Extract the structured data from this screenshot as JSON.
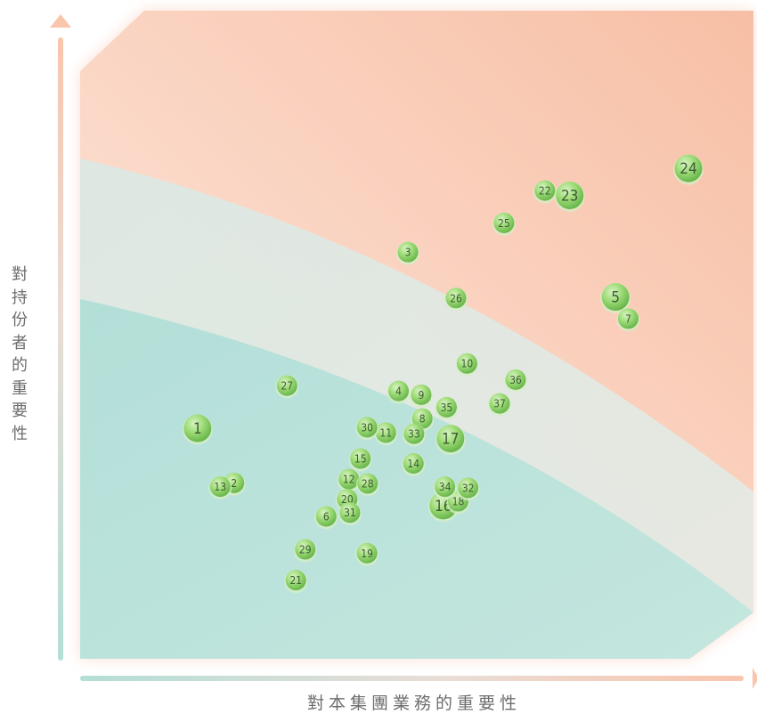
{
  "chart_data": {
    "type": "scatter",
    "xlabel": "對本集團業務的重要性",
    "ylabel": "對持份者的重要性",
    "grid": false,
    "legend": "none",
    "colors": {
      "zone_high": "#f9c3aa",
      "zone_mid": "#e3e8e2",
      "zone_low": "#b6e1d9",
      "bubble": "#8fd46a",
      "bubble_dark": "#5cae3f",
      "label": "#3e5a36"
    },
    "points": [
      {
        "id": "1",
        "x": 11.1,
        "y": 39.2,
        "size": "large"
      },
      {
        "id": "2",
        "x": 17.7,
        "y": 29.1,
        "size": "small"
      },
      {
        "id": "3",
        "x": 49.2,
        "y": 71.8,
        "size": "small"
      },
      {
        "id": "4",
        "x": 47.5,
        "y": 46.1,
        "size": "small"
      },
      {
        "id": "5",
        "x": 86.8,
        "y": 63.5,
        "size": "large"
      },
      {
        "id": "6",
        "x": 34.4,
        "y": 22.9,
        "size": "small"
      },
      {
        "id": "7",
        "x": 89.1,
        "y": 59.5,
        "size": "small"
      },
      {
        "id": "8",
        "x": 51.8,
        "y": 41.0,
        "size": "small"
      },
      {
        "id": "9",
        "x": 51.6,
        "y": 45.4,
        "size": "small"
      },
      {
        "id": "10",
        "x": 59.9,
        "y": 51.2,
        "size": "small"
      },
      {
        "id": "11",
        "x": 45.2,
        "y": 38.4,
        "size": "small"
      },
      {
        "id": "12",
        "x": 38.5,
        "y": 29.8,
        "size": "small"
      },
      {
        "id": "13",
        "x": 15.2,
        "y": 28.4,
        "size": "small"
      },
      {
        "id": "14",
        "x": 50.2,
        "y": 32.7,
        "size": "small"
      },
      {
        "id": "15",
        "x": 40.6,
        "y": 33.6,
        "size": "small"
      },
      {
        "id": "16",
        "x": 55.6,
        "y": 24.9,
        "size": "large"
      },
      {
        "id": "17",
        "x": 56.9,
        "y": 37.3,
        "size": "large"
      },
      {
        "id": "18",
        "x": 58.3,
        "y": 25.7,
        "size": "small"
      },
      {
        "id": "19",
        "x": 41.8,
        "y": 16.1,
        "size": "small"
      },
      {
        "id": "20",
        "x": 38.2,
        "y": 26.1,
        "size": "small"
      },
      {
        "id": "21",
        "x": 28.9,
        "y": 11.1,
        "size": "small"
      },
      {
        "id": "22",
        "x": 74.0,
        "y": 83.2,
        "size": "small"
      },
      {
        "id": "23",
        "x": 78.5,
        "y": 82.3,
        "size": "large"
      },
      {
        "id": "24",
        "x": 100.0,
        "y": 87.3,
        "size": "large"
      },
      {
        "id": "25",
        "x": 66.6,
        "y": 77.2,
        "size": "small"
      },
      {
        "id": "26",
        "x": 57.9,
        "y": 63.3,
        "size": "small"
      },
      {
        "id": "27",
        "x": 27.3,
        "y": 47.1,
        "size": "small"
      },
      {
        "id": "28",
        "x": 41.9,
        "y": 29.0,
        "size": "small"
      },
      {
        "id": "29",
        "x": 30.6,
        "y": 16.8,
        "size": "small"
      },
      {
        "id": "30",
        "x": 41.8,
        "y": 39.4,
        "size": "small"
      },
      {
        "id": "31",
        "x": 38.7,
        "y": 23.6,
        "size": "small"
      },
      {
        "id": "32",
        "x": 60.1,
        "y": 28.2,
        "size": "small"
      },
      {
        "id": "33",
        "x": 50.3,
        "y": 38.2,
        "size": "small"
      },
      {
        "id": "34",
        "x": 55.9,
        "y": 28.4,
        "size": "small"
      },
      {
        "id": "35",
        "x": 56.2,
        "y": 43.1,
        "size": "small"
      },
      {
        "id": "36",
        "x": 68.7,
        "y": 48.2,
        "size": "small"
      },
      {
        "id": "37",
        "x": 65.8,
        "y": 43.8,
        "size": "small"
      }
    ]
  }
}
